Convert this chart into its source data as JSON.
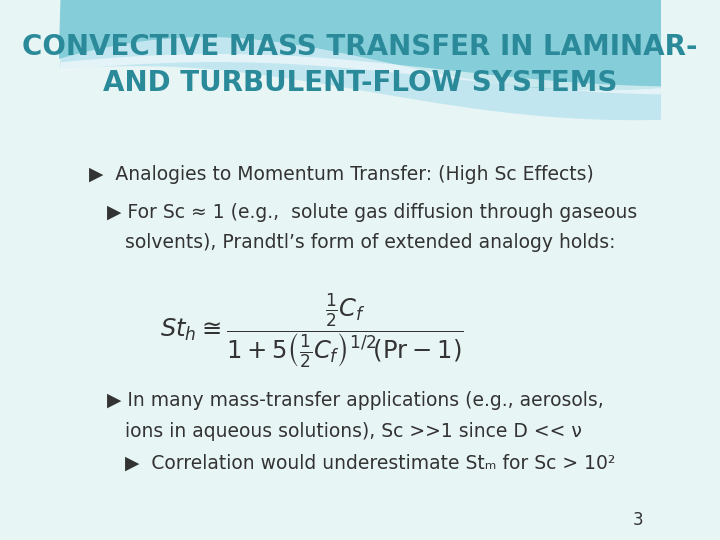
{
  "bg_color": "#e8f5f5",
  "wave_color_dark": "#5bbccc",
  "wave_color_light": "#aadddd",
  "title_line1": "CONVECTIVE MASS TRANSFER IN LAMINAR-",
  "title_line2": "AND TURBULENT-FLOW SYSTEMS",
  "title_color": "#2a8a9a",
  "title_fontsize": 20,
  "bullet1": "▶  Analogies to Momentum Transfer: (High Sc Effects)",
  "bullet2_line1": "   ▶ For Sc ≈ 1 (e.g.,  solute gas diffusion through gaseous",
  "bullet2_line2": "      solvents), Prandtl’s form of extended analogy holds:",
  "bullet3_line1": "   ▶ In many mass-transfer applications (e.g., aerosols,",
  "bullet3_line2": "      ions in aqueous solutions), Sc >>1 since D << ν",
  "bullet4": "      ▶  Correlation would underestimate Stₘ for Sc > 10²",
  "body_color": "#333333",
  "body_fontsize": 13.5,
  "page_number": "3"
}
